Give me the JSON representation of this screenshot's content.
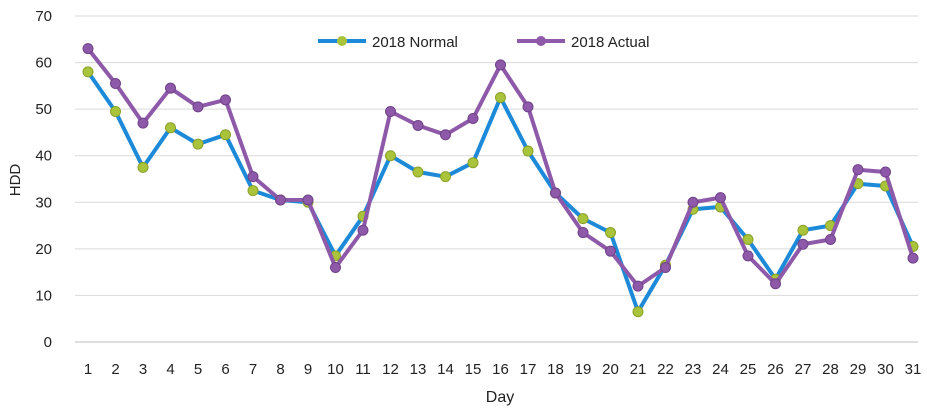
{
  "chart_data": {
    "type": "line",
    "title": "",
    "xlabel": "Day",
    "ylabel": "HDD",
    "ylim": [
      0,
      70
    ],
    "yticks": [
      0,
      10,
      20,
      30,
      40,
      50,
      60,
      70
    ],
    "grid": "horizontal",
    "legend_position": "top-center",
    "x": [
      1,
      2,
      3,
      4,
      5,
      6,
      7,
      8,
      9,
      10,
      11,
      12,
      13,
      14,
      15,
      16,
      17,
      18,
      19,
      20,
      21,
      22,
      23,
      24,
      25,
      26,
      27,
      28,
      29,
      30,
      31
    ],
    "series": [
      {
        "name": "2018 Normal",
        "color": "#1c8ad8",
        "marker_color": "#a9c43a",
        "values": [
          58,
          49.5,
          37.5,
          46,
          42.5,
          44.5,
          32.5,
          30.5,
          30,
          18.5,
          27,
          40,
          36.5,
          35.5,
          38.5,
          52.5,
          41,
          32,
          26.5,
          23.5,
          6.5,
          16.5,
          28.5,
          29,
          22,
          13.5,
          24,
          25,
          34,
          33.5,
          20.5
        ]
      },
      {
        "name": "2018 Actual",
        "color": "#8e59a8",
        "marker_color": "#8e59a8",
        "values": [
          63,
          55.5,
          47,
          54.5,
          50.5,
          52,
          35.5,
          30.5,
          30.5,
          16,
          24,
          49.5,
          46.5,
          44.5,
          48,
          59.5,
          50.5,
          32,
          23.5,
          19.5,
          12,
          16,
          30,
          31,
          18.5,
          12.5,
          21,
          22,
          37,
          36.5,
          18
        ]
      }
    ]
  }
}
